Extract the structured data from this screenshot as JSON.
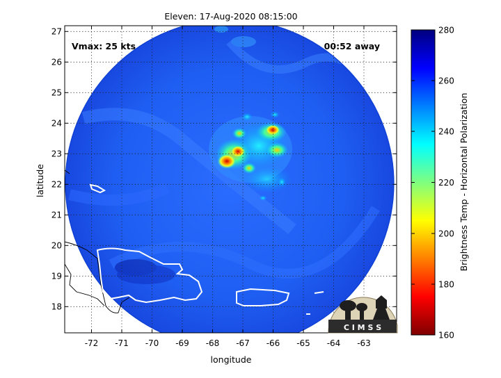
{
  "title": "Eleven: 17-Aug-2020 08:15:00",
  "xlabel": "longitude",
  "ylabel": "latitude",
  "annotations": {
    "vmax": "Vmax: 25 kts",
    "time_away": "00:52 away"
  },
  "x_ticks": [
    "-72",
    "-71",
    "-70",
    "-69",
    "-68",
    "-67",
    "-66",
    "-65",
    "-64",
    "-63"
  ],
  "y_ticks": [
    "27",
    "26",
    "25",
    "24",
    "23",
    "22",
    "21",
    "20",
    "19",
    "18"
  ],
  "x_range": [
    -72.9,
    -62.1
  ],
  "y_range": [
    17.1,
    27.1
  ],
  "colorbar": {
    "label": "Brightness Temp - Horizontal Polarization",
    "ticks": [
      "280",
      "260",
      "240",
      "220",
      "200",
      "180",
      "160"
    ],
    "range": [
      160,
      280
    ],
    "colormap": "jet",
    "low_color": "#7f0000",
    "high_color": "#00007f"
  },
  "logo": {
    "text": "C I M S S"
  },
  "colors": {
    "background_field": "#1f5ff0",
    "coastline": "#ffffff",
    "outline": "#000000"
  }
}
